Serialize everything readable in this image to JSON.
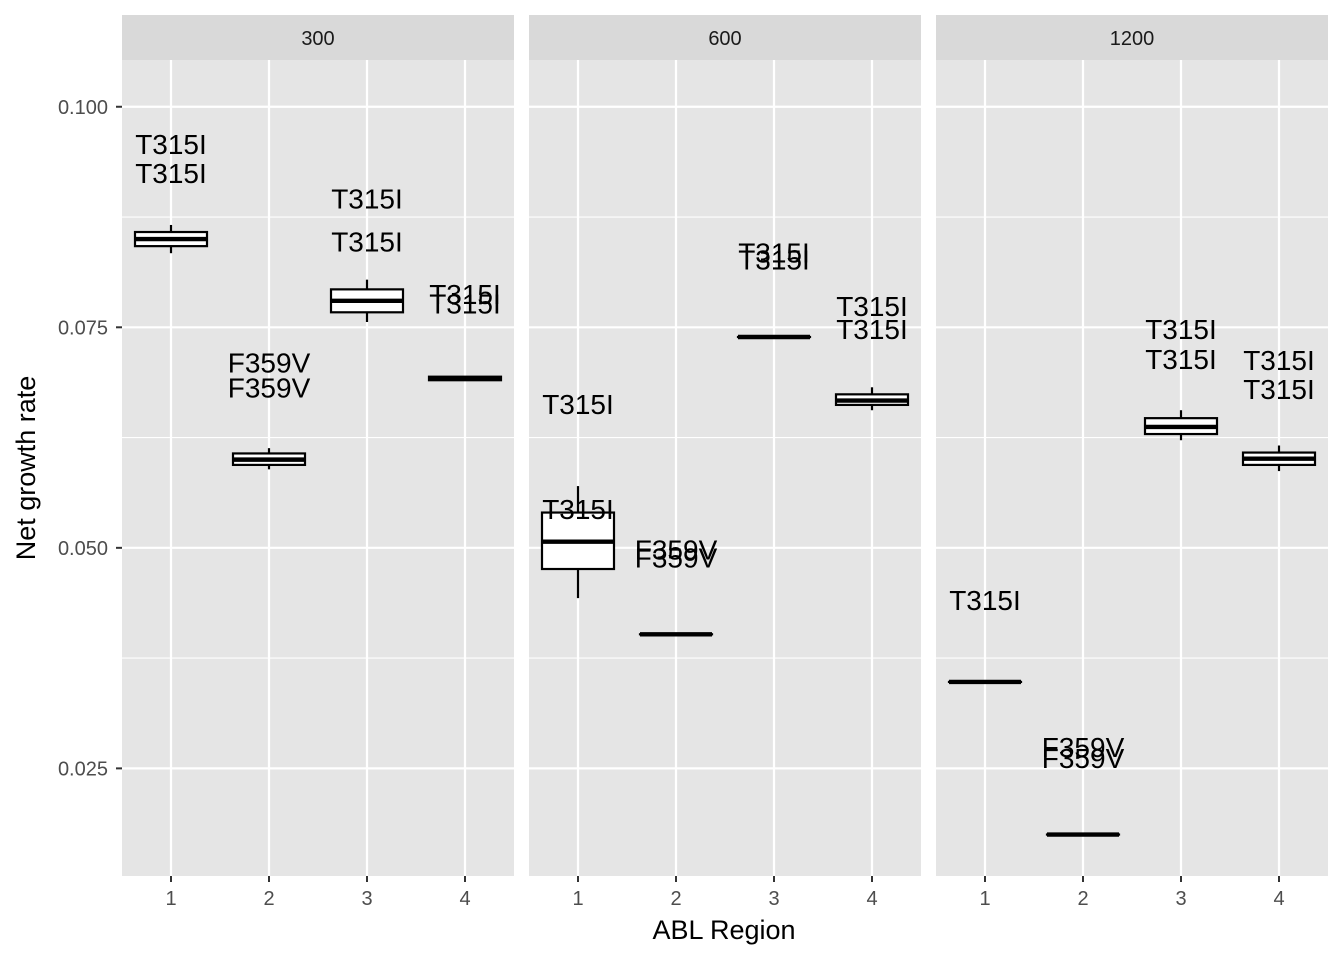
{
  "chart_data": {
    "type": "boxplot",
    "facet_variable_values": [
      "300",
      "600",
      "1200"
    ],
    "xlabel": "ABL Region",
    "ylabel": "Net growth rate",
    "x_categories": [
      "1",
      "2",
      "3",
      "4"
    ],
    "y_ticks": [
      0.025,
      0.05,
      0.075,
      0.1
    ],
    "y_tick_labels": [
      "0.025",
      "0.050",
      "0.075",
      "0.100"
    ],
    "ylim": [
      0.0128,
      0.1053
    ],
    "grid": true,
    "panels": [
      {
        "facet": "300",
        "boxes": [
          {
            "x": "1",
            "lower": 0.0834,
            "q1": 0.0842,
            "median": 0.085,
            "q3": 0.0858,
            "upper": 0.0866
          },
          {
            "x": "2",
            "lower": 0.0589,
            "q1": 0.0594,
            "median": 0.06,
            "q3": 0.0607,
            "upper": 0.0613
          },
          {
            "x": "3",
            "lower": 0.0756,
            "q1": 0.0767,
            "median": 0.078,
            "q3": 0.0793,
            "upper": 0.0804
          },
          {
            "x": "4",
            "lower": 0.069,
            "q1": 0.069,
            "median": 0.0692,
            "q3": 0.0694,
            "upper": 0.0694
          }
        ],
        "labels": [
          {
            "x": "1",
            "y": 0.0958,
            "text": "T315I"
          },
          {
            "x": "1",
            "y": 0.0925,
            "text": "T315I"
          },
          {
            "x": "2",
            "y": 0.071,
            "text": "F359V"
          },
          {
            "x": "2",
            "y": 0.0682,
            "text": "F359V"
          },
          {
            "x": "3",
            "y": 0.0896,
            "text": "T315I"
          },
          {
            "x": "3",
            "y": 0.0847,
            "text": "T315I"
          },
          {
            "x": "4",
            "y": 0.0788,
            "text": "T315I"
          },
          {
            "x": "4",
            "y": 0.0777,
            "text": "T315I"
          }
        ]
      },
      {
        "facet": "600",
        "boxes": [
          {
            "x": "1",
            "lower": 0.0443,
            "q1": 0.0476,
            "median": 0.0507,
            "q3": 0.054,
            "upper": 0.057
          },
          {
            "x": "2",
            "lower": 0.0402,
            "q1": 0.0402,
            "median": 0.0402,
            "q3": 0.0402,
            "upper": 0.0402
          },
          {
            "x": "3",
            "lower": 0.0739,
            "q1": 0.0739,
            "median": 0.0739,
            "q3": 0.0739,
            "upper": 0.0739
          },
          {
            "x": "4",
            "lower": 0.0656,
            "q1": 0.0662,
            "median": 0.0667,
            "q3": 0.0674,
            "upper": 0.0682
          }
        ],
        "labels": [
          {
            "x": "1",
            "y": 0.0663,
            "text": "T315I"
          },
          {
            "x": "1",
            "y": 0.0544,
            "text": "T315I"
          },
          {
            "x": "2",
            "y": 0.0498,
            "text": "F359V"
          },
          {
            "x": "2",
            "y": 0.0489,
            "text": "F359V"
          },
          {
            "x": "3",
            "y": 0.0835,
            "text": "T315I"
          },
          {
            "x": "3",
            "y": 0.0827,
            "text": "T315I"
          },
          {
            "x": "4",
            "y": 0.0774,
            "text": "T315I"
          },
          {
            "x": "4",
            "y": 0.0748,
            "text": "T315I"
          }
        ]
      },
      {
        "facet": "1200",
        "boxes": [
          {
            "x": "1",
            "lower": 0.0348,
            "q1": 0.0348,
            "median": 0.0348,
            "q3": 0.0348,
            "upper": 0.0348
          },
          {
            "x": "2",
            "lower": 0.0175,
            "q1": 0.0175,
            "median": 0.0175,
            "q3": 0.0175,
            "upper": 0.0175
          },
          {
            "x": "3",
            "lower": 0.0622,
            "q1": 0.0629,
            "median": 0.0637,
            "q3": 0.0647,
            "upper": 0.0656
          },
          {
            "x": "4",
            "lower": 0.0587,
            "q1": 0.0594,
            "median": 0.0601,
            "q3": 0.0608,
            "upper": 0.0616
          }
        ],
        "labels": [
          {
            "x": "1",
            "y": 0.0441,
            "text": "T315I"
          },
          {
            "x": "2",
            "y": 0.0274,
            "text": "F359V"
          },
          {
            "x": "2",
            "y": 0.0262,
            "text": "F359V"
          },
          {
            "x": "3",
            "y": 0.0748,
            "text": "T315I"
          },
          {
            "x": "3",
            "y": 0.0714,
            "text": "T315I"
          },
          {
            "x": "4",
            "y": 0.0713,
            "text": "T315I"
          },
          {
            "x": "4",
            "y": 0.068,
            "text": "T315I"
          }
        ]
      }
    ]
  }
}
